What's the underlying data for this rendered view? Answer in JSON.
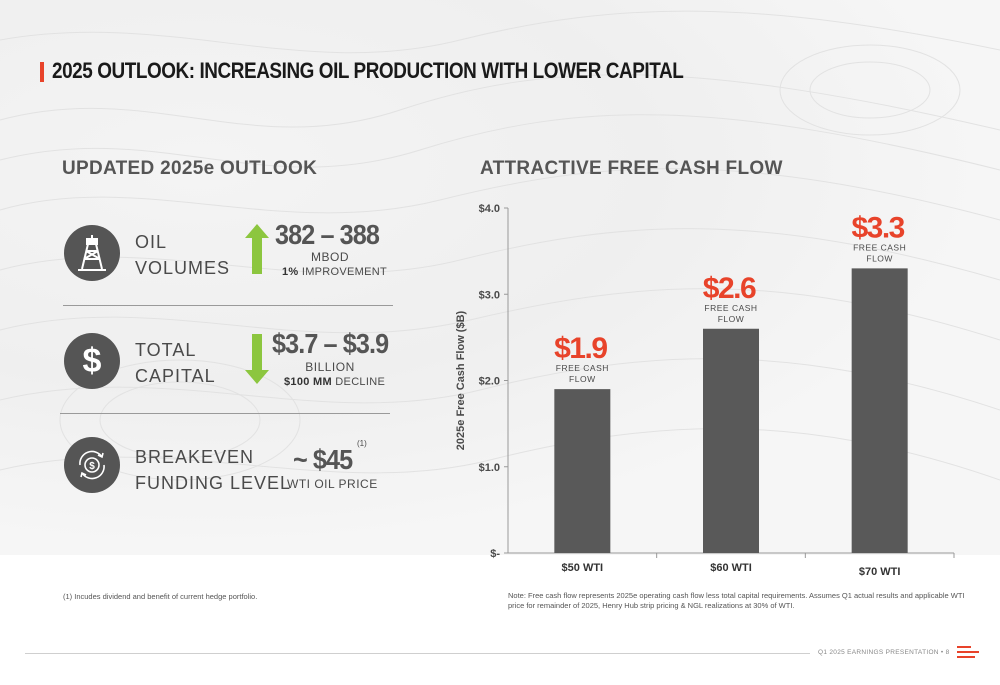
{
  "title": "2025 OUTLOOK: INCREASING OIL PRODUCTION WITH LOWER CAPITAL",
  "left": {
    "heading": "UPDATED 2025e OUTLOOK",
    "rows": [
      {
        "icon": "oil-rig-icon",
        "label_line1": "OIL",
        "label_line2": "VOLUMES",
        "arrow": "up-arrow-icon",
        "value": "382 – 388",
        "unit": "MBOD",
        "sub_bold": "1%",
        "sub_rest": " IMPROVEMENT"
      },
      {
        "icon": "dollar-sign-icon",
        "label_line1": "TOTAL",
        "label_line2": "CAPITAL",
        "arrow": "down-arrow-icon",
        "value": "$3.7 – $3.9",
        "unit": "BILLION",
        "sub_bold": "$100 MM",
        "sub_rest": " DECLINE"
      },
      {
        "icon": "circular-dollar-icon",
        "label_line1": "BREAKEVEN",
        "label_line2": "FUNDING LEVEL",
        "value": "~ $45",
        "superscript": "(1)",
        "unit": "WTI OIL PRICE"
      }
    ],
    "footnote": "(1) Incudes dividend and benefit of current hedge portfolio."
  },
  "right": {
    "heading": "ATTRACTIVE FREE CASH FLOW",
    "note": "Note: Free cash flow represents 2025e operating cash flow less total capital requirements. Assumes Q1 actual results and applicable WTI price for remainder of 2025, Henry Hub strip pricing & NGL realizations at 30% of WTI."
  },
  "chart_data": {
    "type": "bar",
    "categories": [
      "$50 WTI",
      "$60 WTI",
      "$70 WTI"
    ],
    "values": [
      1.9,
      2.6,
      3.3
    ],
    "data_labels": [
      "$1.9",
      "$2.6",
      "$3.3"
    ],
    "bar_annotation_line1": "FREE CASH",
    "bar_annotation_line2": "FLOW",
    "ylabel": "2025e Free Cash Flow ($B)",
    "ylim": [
      0,
      4
    ],
    "yticks": [
      0,
      1,
      2,
      3,
      4
    ],
    "ytick_labels": [
      "$-",
      "$1.0",
      "$2.0",
      "$3.0",
      "$4.0"
    ],
    "grid": false,
    "colors": {
      "bar": "#595959",
      "label": "#e8432a",
      "axis": "#999999"
    }
  },
  "footer": {
    "text": "Q1 2025 EARNINGS PRESENTATION  •  8"
  },
  "colors": {
    "accent": "#e8432a",
    "arrow": "#8cc63f",
    "icon_bg": "#555555"
  }
}
